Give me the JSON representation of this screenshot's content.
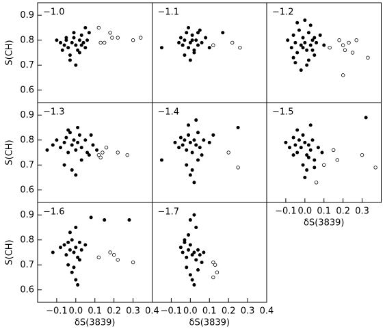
{
  "chart_data": [
    {
      "type": "scatter",
      "title": "−1.0",
      "ylabel": "S(CH)",
      "xlim": [
        -0.2,
        0.4
      ],
      "ylim": [
        0.55,
        0.95
      ],
      "yticks": [
        0.6,
        0.7,
        0.8,
        0.9
      ],
      "series": [
        {
          "marker": "filled",
          "color": "#000000",
          "x": [
            -0.1,
            -0.08,
            -0.06,
            -0.05,
            -0.04,
            -0.03,
            -0.02,
            -0.01,
            0,
            0.01,
            0.02,
            0.03,
            0.04,
            0.05,
            0.06,
            0.07,
            -0.07,
            -0.03,
            0.0,
            0.02,
            0.05,
            -0.01,
            0.03,
            -0.05
          ],
          "values": [
            0.8,
            0.79,
            0.78,
            0.8,
            0.77,
            0.74,
            0.79,
            0.81,
            0.78,
            0.76,
            0.8,
            0.82,
            0.79,
            0.77,
            0.8,
            0.83,
            0.76,
            0.72,
            0.7,
            0.75,
            0.85,
            0.83,
            0.78,
            0.81
          ]
        },
        {
          "marker": "open",
          "color": "#000000",
          "x": [
            0.12,
            0.13,
            0.15,
            0.18,
            0.19,
            0.22,
            0.3,
            0.34
          ],
          "values": [
            0.85,
            0.79,
            0.79,
            0.83,
            0.81,
            0.81,
            0.8,
            0.81
          ]
        }
      ]
    },
    {
      "type": "scatter",
      "title": "−1.1",
      "xlim": [
        -0.2,
        0.4
      ],
      "ylim": [
        0.55,
        0.95
      ],
      "series": [
        {
          "marker": "filled",
          "color": "#000000",
          "x": [
            -0.15,
            -0.06,
            -0.05,
            -0.04,
            -0.03,
            -0.02,
            -0.01,
            0,
            0.01,
            0.02,
            0.03,
            0.04,
            0.05,
            0.06,
            0.08,
            0.1,
            -0.03,
            0,
            0.02,
            -0.01,
            0.04,
            0.17,
            -0.04,
            0.01
          ],
          "values": [
            0.77,
            0.79,
            0.81,
            0.78,
            0.8,
            0.83,
            0.77,
            0.79,
            0.82,
            0.75,
            0.8,
            0.78,
            0.84,
            0.79,
            0.81,
            0.77,
            0.74,
            0.72,
            0.76,
            0.85,
            0.83,
            0.83,
            0.78,
            0.8
          ]
        },
        {
          "marker": "open",
          "color": "#000000",
          "x": [
            0.12,
            0.22,
            0.26
          ],
          "values": [
            0.78,
            0.79,
            0.77
          ]
        }
      ]
    },
    {
      "type": "scatter",
      "title": "−1.2",
      "xlim": [
        -0.2,
        0.4
      ],
      "ylim": [
        0.55,
        0.95
      ],
      "series": [
        {
          "marker": "filled",
          "color": "#000000",
          "x": [
            -0.09,
            -0.07,
            -0.06,
            -0.05,
            -0.04,
            -0.03,
            -0.02,
            -0.01,
            0,
            0.01,
            0.02,
            0.03,
            0.04,
            0.05,
            0.06,
            0.08,
            -0.05,
            -0.02,
            0.0,
            0.02,
            0.03,
            -0.04,
            0.01,
            -0.01,
            0.05,
            -0.06,
            0.04,
            0.1
          ],
          "values": [
            0.8,
            0.77,
            0.82,
            0.79,
            0.75,
            0.84,
            0.78,
            0.81,
            0.79,
            0.76,
            0.83,
            0.78,
            0.8,
            0.74,
            0.79,
            0.82,
            0.71,
            0.68,
            0.88,
            0.72,
            0.86,
            0.87,
            0.7,
            0.77,
            0.81,
            0.73,
            0.76,
            0.78
          ]
        },
        {
          "marker": "open",
          "color": "#000000",
          "x": [
            0.13,
            0.18,
            0.2,
            0.21,
            0.23,
            0.25,
            0.27,
            0.33,
            0.2
          ],
          "values": [
            0.77,
            0.8,
            0.78,
            0.76,
            0.79,
            0.75,
            0.8,
            0.73,
            0.66
          ]
        }
      ]
    },
    {
      "type": "scatter",
      "title": "−1.3",
      "ylabel": "S(CH)",
      "xlim": [
        -0.2,
        0.4
      ],
      "ylim": [
        0.55,
        0.95
      ],
      "yticks": [
        0.6,
        0.7,
        0.8,
        0.9
      ],
      "series": [
        {
          "marker": "filled",
          "color": "#000000",
          "x": [
            -0.15,
            -0.12,
            -0.1,
            -0.08,
            -0.06,
            -0.05,
            -0.04,
            -0.03,
            -0.02,
            -0.01,
            0,
            0.01,
            0.02,
            0.03,
            0.05,
            0.07,
            0.09,
            0.11,
            -0.06,
            -0.02,
            0.0,
            0.03,
            -0.04,
            0.01,
            0.06,
            0.08
          ],
          "values": [
            0.76,
            0.78,
            0.8,
            0.77,
            0.79,
            0.81,
            0.75,
            0.83,
            0.78,
            0.8,
            0.76,
            0.79,
            0.82,
            0.77,
            0.8,
            0.74,
            0.78,
            0.76,
            0.7,
            0.68,
            0.66,
            0.72,
            0.84,
            0.85,
            0.75,
            0.82
          ]
        },
        {
          "marker": "open",
          "color": "#000000",
          "x": [
            0.12,
            0.13,
            0.14,
            0.16,
            0.22,
            0.27
          ],
          "values": [
            0.74,
            0.73,
            0.75,
            0.77,
            0.75,
            0.74
          ]
        }
      ]
    },
    {
      "type": "scatter",
      "title": "−1.4",
      "xlim": [
        -0.2,
        0.4
      ],
      "ylim": [
        0.55,
        0.95
      ],
      "series": [
        {
          "marker": "filled",
          "color": "#000000",
          "x": [
            -0.15,
            -0.08,
            -0.06,
            -0.05,
            -0.04,
            -0.03,
            -0.02,
            -0.01,
            0,
            0.01,
            0.02,
            0.03,
            0.04,
            0.05,
            0.07,
            0.1,
            0.12,
            0.25,
            -0.02,
            0.0,
            0.02,
            0.01,
            -0.01,
            0.03,
            0.04,
            0.06
          ],
          "values": [
            0.72,
            0.79,
            0.77,
            0.81,
            0.78,
            0.8,
            0.76,
            0.82,
            0.79,
            0.75,
            0.8,
            0.78,
            0.83,
            0.77,
            0.8,
            0.79,
            0.82,
            0.85,
            0.7,
            0.66,
            0.63,
            0.68,
            0.86,
            0.88,
            0.72,
            0.74
          ]
        },
        {
          "marker": "open",
          "color": "#000000",
          "x": [
            0.2,
            0.25
          ],
          "values": [
            0.75,
            0.69
          ]
        }
      ]
    },
    {
      "type": "scatter",
      "title": "−1.5",
      "xlabel": "δS(3839)",
      "xlim": [
        -0.2,
        0.4
      ],
      "ylim": [
        0.55,
        0.95
      ],
      "xticks": [
        {
          "value": -0.1,
          "label": "−0.1"
        },
        {
          "value": 0,
          "label": "0.0"
        },
        0.1,
        0.2,
        0.3
      ],
      "series": [
        {
          "marker": "filled",
          "color": "#000000",
          "x": [
            -0.1,
            -0.08,
            -0.06,
            -0.05,
            -0.04,
            -0.03,
            -0.02,
            -0.01,
            0,
            0.01,
            0.02,
            0.03,
            0.04,
            0.05,
            0.07,
            0.09,
            -0.04,
            -0.01,
            0.01,
            0.0,
            0.02,
            0.03,
            -0.06,
            0.32,
            0.05
          ],
          "values": [
            0.79,
            0.77,
            0.81,
            0.78,
            0.75,
            0.8,
            0.77,
            0.82,
            0.79,
            0.74,
            0.78,
            0.76,
            0.8,
            0.72,
            0.77,
            0.75,
            0.84,
            0.7,
            0.68,
            0.65,
            0.73,
            0.86,
            0.74,
            0.89,
            0.69
          ]
        },
        {
          "marker": "open",
          "color": "#000000",
          "x": [
            0.1,
            0.06,
            0.15,
            0.17,
            0.3,
            0.37
          ],
          "values": [
            0.7,
            0.63,
            0.76,
            0.72,
            0.74,
            0.69
          ]
        }
      ]
    },
    {
      "type": "scatter",
      "title": "−1.6",
      "ylabel": "S(CH)",
      "xlabel": "δS(3839)",
      "xlim": [
        -0.2,
        0.4
      ],
      "ylim": [
        0.55,
        0.95
      ],
      "yticks": [
        0.6,
        0.7,
        0.8,
        0.9
      ],
      "xticks": [
        {
          "value": -0.1,
          "label": "−0.1"
        },
        {
          "value": 0,
          "label": "0.0"
        },
        0.1,
        0.2,
        0.3,
        0.4
      ],
      "series": [
        {
          "marker": "filled",
          "color": "#000000",
          "x": [
            -0.12,
            -0.08,
            -0.06,
            -0.05,
            -0.04,
            -0.03,
            -0.02,
            -0.01,
            0,
            0.01,
            0.02,
            0.03,
            0.05,
            -0.04,
            -0.02,
            0,
            0.01,
            -0.03,
            0.0,
            0.02,
            0.08,
            0.15,
            0.28,
            -0.01
          ],
          "values": [
            0.75,
            0.77,
            0.78,
            0.74,
            0.79,
            0.76,
            0.8,
            0.75,
            0.77,
            0.73,
            0.79,
            0.76,
            0.78,
            0.7,
            0.67,
            0.64,
            0.62,
            0.83,
            0.85,
            0.72,
            0.89,
            0.88,
            0.88,
            0.69
          ]
        },
        {
          "marker": "open",
          "color": "#000000",
          "x": [
            0.12,
            0.18,
            0.2,
            0.22,
            0.3
          ],
          "values": [
            0.73,
            0.75,
            0.74,
            0.72,
            0.71
          ]
        }
      ]
    },
    {
      "type": "scatter",
      "title": "−1.7",
      "xlabel": "δS(3839)",
      "xlim": [
        -0.2,
        0.4
      ],
      "ylim": [
        0.55,
        0.95
      ],
      "xticks": [
        {
          "value": -0.1,
          "label": "−0.1"
        },
        {
          "value": 0,
          "label": "0.0"
        },
        0.1,
        0.2,
        0.3,
        0.4
      ],
      "series": [
        {
          "marker": "filled",
          "color": "#000000",
          "x": [
            -0.05,
            -0.04,
            -0.03,
            -0.02,
            -0.01,
            0,
            0.01,
            0.02,
            0.03,
            0.04,
            0.05,
            0.07,
            -0.02,
            0,
            0.01,
            0.02,
            -0.01,
            0.03,
            0.0,
            0.02,
            0.06,
            0.04,
            -0.03
          ],
          "values": [
            0.77,
            0.75,
            0.79,
            0.73,
            0.76,
            0.78,
            0.74,
            0.75,
            0.72,
            0.76,
            0.74,
            0.75,
            0.69,
            0.66,
            0.64,
            0.62,
            0.82,
            0.85,
            0.88,
            0.9,
            0.71,
            0.68,
            0.8
          ]
        },
        {
          "marker": "open",
          "color": "#000000",
          "x": [
            0.12,
            0.13,
            0.14,
            0.12
          ],
          "values": [
            0.71,
            0.7,
            0.67,
            0.65
          ]
        }
      ]
    }
  ]
}
